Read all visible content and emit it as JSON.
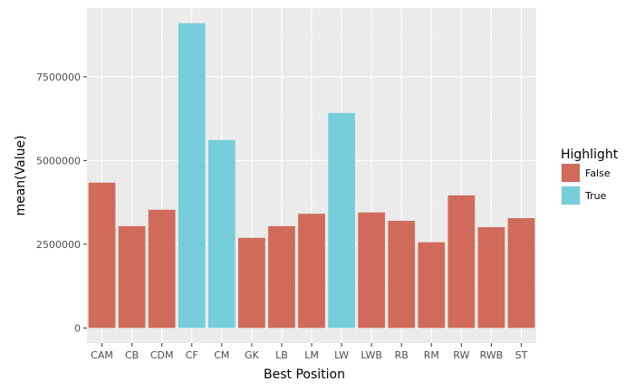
{
  "chart_data": {
    "type": "bar",
    "title": "",
    "xlabel": "Best Position",
    "ylabel": "mean(Value)",
    "categories": [
      "CAM",
      "CB",
      "CDM",
      "CF",
      "CM",
      "GK",
      "LB",
      "LM",
      "LW",
      "LWB",
      "RB",
      "RM",
      "RW",
      "RWB",
      "ST"
    ],
    "values": [
      4340000,
      3040000,
      3530000,
      9100000,
      5610000,
      2690000,
      3040000,
      3410000,
      6420000,
      3450000,
      3200000,
      2560000,
      3960000,
      3010000,
      3280000
    ],
    "highlight": [
      false,
      false,
      false,
      true,
      true,
      false,
      false,
      false,
      true,
      false,
      false,
      false,
      false,
      false,
      false
    ],
    "ylim": [
      -450000,
      9550000
    ],
    "yticks": [
      0,
      2500000,
      5000000,
      7500000
    ],
    "ytick_labels": [
      "0",
      "2500000",
      "5000000",
      "7500000"
    ],
    "grid": true,
    "legend": {
      "title": "Highlight",
      "placement": "right",
      "entries": [
        {
          "label": "False",
          "color": "#d06b5b"
        },
        {
          "label": "True",
          "color": "#75ced9"
        }
      ]
    },
    "colors": {
      "false": "#d06b5b",
      "true": "#75ced9",
      "panel": "#ebebeb",
      "grid_major": "#ffffff",
      "grid_minor": "#f5f5f5"
    }
  }
}
